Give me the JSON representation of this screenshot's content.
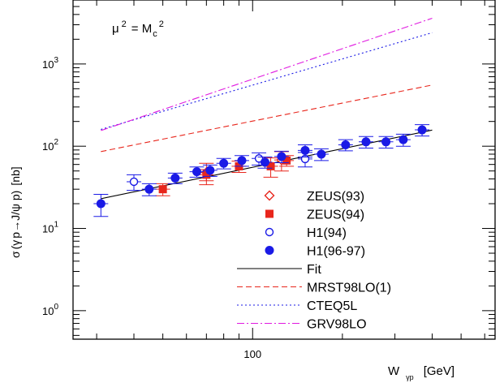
{
  "chart_data": {
    "type": "scatter",
    "scale": {
      "x": "log",
      "y": "log"
    },
    "xlim": [
      25,
      650
    ],
    "ylim": [
      0.45,
      6000
    ],
    "grid": false,
    "legend_position": "bottom-center",
    "annotation": {
      "mu": "μ",
      "sup": "2",
      "eq": "= M",
      "sub": "c",
      "sup2": "2"
    },
    "ylabel": {
      "sigma": "σ",
      "lp": "(",
      "gamma": "γ",
      "p": "p",
      "arrow": "→",
      "jpsi": "J/ψ",
      "p2": " p)",
      "unit": "[nb]"
    },
    "xlabel": {
      "w": "W",
      "sub": "γp",
      "unit": "[GeV]"
    },
    "x_ticks": [
      {
        "value": 100,
        "label": "100"
      }
    ],
    "y_ticks": [
      {
        "value": 1,
        "base": "10",
        "exp": "0"
      },
      {
        "value": 10,
        "base": "10",
        "exp": "1"
      },
      {
        "value": 100,
        "base": "10",
        "exp": "2"
      },
      {
        "value": 1000,
        "base": "10",
        "exp": "3"
      }
    ],
    "legend": [
      {
        "label": "ZEUS(93)",
        "symbol": "diamond-open",
        "color": "#e8261c"
      },
      {
        "label": "ZEUS(94)",
        "symbol": "square-filled",
        "color": "#e8261c"
      },
      {
        "label": "H1(94)",
        "symbol": "circle-open",
        "color": "#1a1ae6"
      },
      {
        "label": "H1(96-97)",
        "symbol": "circle-filled",
        "color": "#1a1ae6"
      },
      {
        "label": "Fit",
        "symbol": "line-solid",
        "color": "#000000"
      },
      {
        "label": "MRST98LO(1)",
        "symbol": "line-dashed",
        "color": "#e8261c"
      },
      {
        "label": "CTEQ5L",
        "symbol": "line-dotted",
        "color": "#1a1ae6"
      },
      {
        "label": "GRV98LO",
        "symbol": "line-dashdot",
        "color": "#e019e0"
      }
    ],
    "series": [
      {
        "name": "ZEUS(93)",
        "kind": "points",
        "symbol": "diamond-open",
        "color": "#e8261c",
        "points": [
          {
            "x": 70,
            "y": 48,
            "err": 14
          },
          {
            "x": 125,
            "y": 68,
            "err": 18
          }
        ]
      },
      {
        "name": "ZEUS(94)",
        "kind": "points",
        "symbol": "square-filled",
        "color": "#e8261c",
        "points": [
          {
            "x": 50,
            "y": 30,
            "err": 5
          },
          {
            "x": 70,
            "y": 45,
            "err": 7
          },
          {
            "x": 90,
            "y": 57,
            "err": 9
          },
          {
            "x": 115,
            "y": 57,
            "err": 15
          },
          {
            "x": 130,
            "y": 67,
            "err": 10
          }
        ]
      },
      {
        "name": "H1(94)",
        "kind": "points",
        "symbol": "circle-open",
        "color": "#1a1ae6",
        "points": [
          {
            "x": 40,
            "y": 37,
            "err": 8
          },
          {
            "x": 105,
            "y": 71,
            "err": 12
          },
          {
            "x": 150,
            "y": 70,
            "err": 14
          }
        ]
      },
      {
        "name": "H1(96-97)",
        "kind": "points",
        "symbol": "circle-filled",
        "color": "#1a1ae6",
        "points": [
          {
            "x": 31,
            "y": 20,
            "err": 6
          },
          {
            "x": 45,
            "y": 30,
            "err": 5
          },
          {
            "x": 55,
            "y": 41,
            "err": 6
          },
          {
            "x": 65,
            "y": 49,
            "err": 7
          },
          {
            "x": 72,
            "y": 51,
            "err": 8
          },
          {
            "x": 80,
            "y": 62,
            "err": 9
          },
          {
            "x": 92,
            "y": 67,
            "err": 10
          },
          {
            "x": 110,
            "y": 64,
            "err": 10
          },
          {
            "x": 125,
            "y": 75,
            "err": 12
          },
          {
            "x": 150,
            "y": 89,
            "err": 15
          },
          {
            "x": 170,
            "y": 80,
            "err": 13
          },
          {
            "x": 205,
            "y": 104,
            "err": 16
          },
          {
            "x": 240,
            "y": 113,
            "err": 18
          },
          {
            "x": 280,
            "y": 113,
            "err": 18
          },
          {
            "x": 320,
            "y": 120,
            "err": 20
          },
          {
            "x": 370,
            "y": 158,
            "err": 25
          }
        ]
      },
      {
        "name": "Fit",
        "kind": "line",
        "dash": "solid",
        "color": "#000000",
        "points": [
          {
            "x": 31,
            "y": 23
          },
          {
            "x": 400,
            "y": 157
          }
        ]
      },
      {
        "name": "MRST98LO(1)",
        "kind": "line",
        "dash": "dashed",
        "color": "#e8261c",
        "points": [
          {
            "x": 31,
            "y": 86
          },
          {
            "x": 400,
            "y": 555
          }
        ]
      },
      {
        "name": "CTEQ5L",
        "kind": "line",
        "dash": "dotted",
        "color": "#1a1ae6",
        "points": [
          {
            "x": 31,
            "y": 160
          },
          {
            "x": 400,
            "y": 2400
          }
        ]
      },
      {
        "name": "GRV98LO",
        "kind": "line",
        "dash": "dashdot",
        "color": "#e019e0",
        "points": [
          {
            "x": 31,
            "y": 155
          },
          {
            "x": 400,
            "y": 3600
          }
        ]
      }
    ]
  }
}
